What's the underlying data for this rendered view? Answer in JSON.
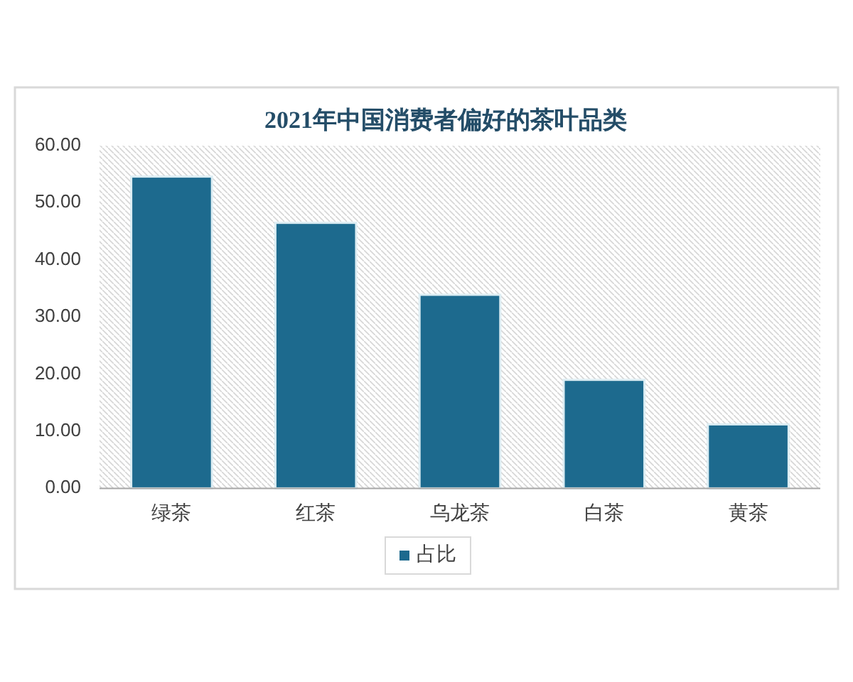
{
  "chart_data": {
    "type": "bar",
    "title": "2021年中国消费者偏好的茶叶品类",
    "categories": [
      "绿茶",
      "红茶",
      "乌龙茶",
      "白茶",
      "黄茶"
    ],
    "series": [
      {
        "name": "占比",
        "color": "#1d6a8e",
        "values": [
          54.6,
          46.5,
          33.9,
          19.0,
          11.2
        ]
      }
    ],
    "ylim": [
      0,
      60
    ],
    "yticks": [
      {
        "value": 0,
        "label": "0.00"
      },
      {
        "value": 10,
        "label": "10.00"
      },
      {
        "value": 20,
        "label": "20.00"
      },
      {
        "value": 30,
        "label": "30.00"
      },
      {
        "value": 40,
        "label": "40.00"
      },
      {
        "value": 50,
        "label": "50.00"
      },
      {
        "value": 60,
        "label": "60.00"
      }
    ],
    "legend": "bottom"
  }
}
